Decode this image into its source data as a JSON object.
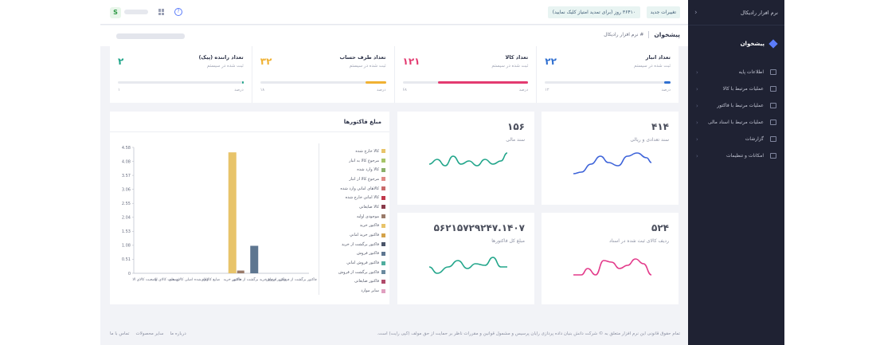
{
  "sidebar": {
    "brand": "نرم افزار رادیکال",
    "dashboard": "پیشخوان",
    "items": [
      {
        "label": "اطلاعات پایه"
      },
      {
        "label": "عملیات مرتبط با کالا"
      },
      {
        "label": "عملیات مرتبط با فاکتور"
      },
      {
        "label": "عملیات مرتبط با اسناد مالی"
      },
      {
        "label": "گزارشات"
      },
      {
        "label": "امکانات و تنظیمات"
      }
    ]
  },
  "topbar": {
    "avatar_letter": "S",
    "changes_label": "تغییرات جدید",
    "renew_label": "۳۶۴۱۰ روز (برای تمدید امتیاز کلیک نمایید)"
  },
  "breadcrumb": {
    "title": "پیشخوان",
    "path": "# نرم افزار رادیکال"
  },
  "stats": [
    {
      "name": "تعداد انبار",
      "sub": "ثبت شده در سیستم",
      "value": "۲۲",
      "color": "#2f6fd0",
      "fraction": 0.05,
      "percent_label": "درصد",
      "max_label": "۱۲"
    },
    {
      "name": "تعداد کالا",
      "sub": "ثبت شده در سیستم",
      "value": "۱۲۱",
      "color": "#e33a70",
      "fraction": 0.72,
      "percent_label": "درصد",
      "max_label": "۶۸"
    },
    {
      "name": "تعداد طرف حساب",
      "sub": "ثبت شده در سیستم",
      "value": "۳۲",
      "color": "#f0b132",
      "fraction": 0.16,
      "percent_label": "درصد",
      "max_label": "۱۸"
    },
    {
      "name": "تعداد راننده (پیک)",
      "sub": "ثبت شده در سیستم",
      "value": "۲",
      "color": "#21a58a",
      "fraction": 0.01,
      "percent_label": "درصد",
      "max_label": "۱"
    }
  ],
  "minis": [
    {
      "value": "۴۱۴",
      "label": "سند تعدادی و ریالی",
      "color": "#3d63d9"
    },
    {
      "value": "۱۵۶",
      "label": "سند مالی",
      "color": "#21a58a"
    },
    {
      "value": "۵۲۴",
      "label": "ردیف کالای ثبت شده در اسناد",
      "color": "#e33a8a"
    },
    {
      "value": "۵۶۲۱۵۷۲۹۲۴۷.۱۴۰۷",
      "label": "مبلغ کل فاکتورها",
      "color": "#21a58a"
    }
  ],
  "chart_data": {
    "type": "bar",
    "title": "مبلغ فاکتورها",
    "ylim": [
      0,
      4.58
    ],
    "yticks": [
      "4.58",
      "4.08",
      "3.57",
      "3.06",
      "2.55",
      "2.04",
      "1.53",
      "1.08",
      "0.51",
      "0"
    ],
    "categories": [
      "وضعیت کالای الا",
      "وضعیت کالای الا",
      "وارد شده اصلی کالای های",
      "ضایع کالاهای",
      "فاکتور خرید",
      "ارجاع خرید برگشت از فاکتور",
      "فاکتور فروش",
      "فاکتور برگشت از فروش"
    ],
    "series": [
      {
        "name": "کالا خارج شده",
        "color": "#e8c46a",
        "values": [
          0,
          0,
          0,
          0,
          4.4,
          0,
          0,
          0
        ]
      },
      {
        "name": "فاکتور برگشت از خرید",
        "color": "#9a7b6a",
        "values": [
          0,
          0,
          0,
          0,
          0.1,
          0,
          0,
          0
        ]
      },
      {
        "name": "فاکتور فروش",
        "color": "#5e7690",
        "values": [
          0,
          0,
          0,
          0,
          0,
          1.0,
          0,
          0
        ]
      }
    ],
    "legend": [
      {
        "name": "کالا خارج شده",
        "color": "#e8c46a"
      },
      {
        "name": "مرجوع کالا به انبار",
        "color": "#a6c468"
      },
      {
        "name": "کالا وارد شده",
        "color": "#8ab06a"
      },
      {
        "name": "مرجوع کالا از انبار",
        "color": "#e08a86"
      },
      {
        "name": "کالاهای اماني وارد شده",
        "color": "#c86a6a"
      },
      {
        "name": "کالا اماني خارج شده",
        "color": "#c0394b"
      },
      {
        "name": "کالا ضایعاتی",
        "color": "#8a3a4a"
      },
      {
        "name": "موجودی اولیه",
        "color": "#9a7b6a"
      },
      {
        "name": "فاکتور خرید",
        "color": "#e8c46a"
      },
      {
        "name": "فاکتور خرید اماني",
        "color": "#d4a24a"
      },
      {
        "name": "فاکتور برگشت از خرید",
        "color": "#4a5468"
      },
      {
        "name": "فاکتور فروش",
        "color": "#5e7690"
      },
      {
        "name": "فاکتور فروش اماني",
        "color": "#4fae9e"
      },
      {
        "name": "فاکتور برگشت از فروش",
        "color": "#6a8a9e"
      },
      {
        "name": "فاکتور ضایعاتی",
        "color": "#b04a6a"
      },
      {
        "name": "سایر موارد",
        "color": "#e0a0c0"
      }
    ],
    "legend_position": "right",
    "grid": false
  },
  "footer": {
    "copyright": "تمام حقوق قانونی این نرم افزار متعلق به © شرکت دانش بنیان داده پردازی رایان پرسیس و مشمول قوانین و مقررات ناظر بر حمایت از حق مولف (کپی رایت) است.",
    "links": [
      "درباره ما",
      "سایر محصولات",
      "تماس با ما"
    ]
  }
}
